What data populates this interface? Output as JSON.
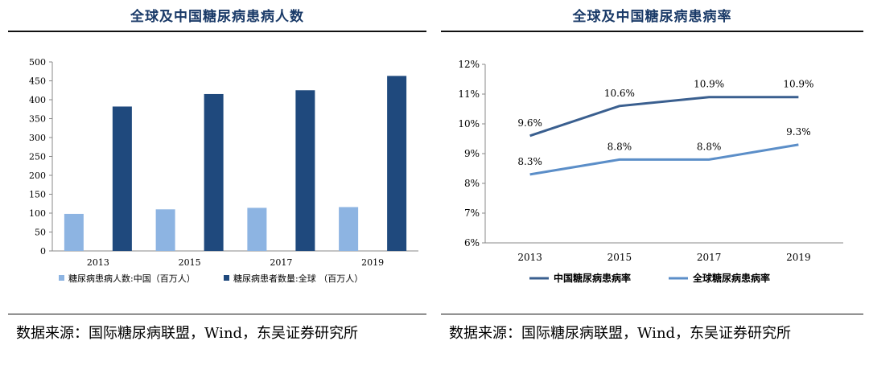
{
  "panels": {
    "left": {
      "title": "全球及中国糖尿病患病人数",
      "source": "数据来源：国际糖尿病联盟，Wind，东吴证券研究所"
    },
    "right": {
      "title": "全球及中国糖尿病患病率",
      "source": "数据来源：国际糖尿病联盟，Wind，东吴证券研究所"
    }
  },
  "chart_data": [
    {
      "type": "bar",
      "title": "全球及中国糖尿病患病人数",
      "categories": [
        "2013",
        "2015",
        "2017",
        "2019"
      ],
      "ylim": [
        0,
        500
      ],
      "yticks": [
        0,
        50,
        100,
        150,
        200,
        250,
        300,
        350,
        400,
        450,
        500
      ],
      "grid": false,
      "legend": "bottom",
      "series": [
        {
          "name": "糖尿病患病人数:中国（百万人）",
          "color": "#8db4e2",
          "values": [
            98,
            110,
            114,
            116
          ]
        },
        {
          "name": "糖尿病患者数量:全球 （百万人）",
          "color": "#1f497d",
          "values": [
            382,
            415,
            425,
            463
          ]
        }
      ]
    },
    {
      "type": "line",
      "title": "全球及中国糖尿病患病率",
      "categories": [
        "2013",
        "2015",
        "2017",
        "2019"
      ],
      "ylim": [
        6,
        12
      ],
      "yticks": [
        "6%",
        "7%",
        "8%",
        "9%",
        "10%",
        "11%",
        "12%"
      ],
      "grid": false,
      "legend": "bottom",
      "series": [
        {
          "name": "中国糖尿病患病率",
          "color": "#3a5f8f",
          "values": [
            9.6,
            10.6,
            10.9,
            10.9
          ],
          "labels": [
            "9.6%",
            "10.6%",
            "10.9%",
            "10.9%"
          ]
        },
        {
          "name": "全球糖尿病患病率",
          "color": "#5b8ec8",
          "values": [
            8.3,
            8.8,
            8.8,
            9.3
          ],
          "labels": [
            "8.3%",
            "8.8%",
            "8.8%",
            "9.3%"
          ]
        }
      ]
    }
  ]
}
